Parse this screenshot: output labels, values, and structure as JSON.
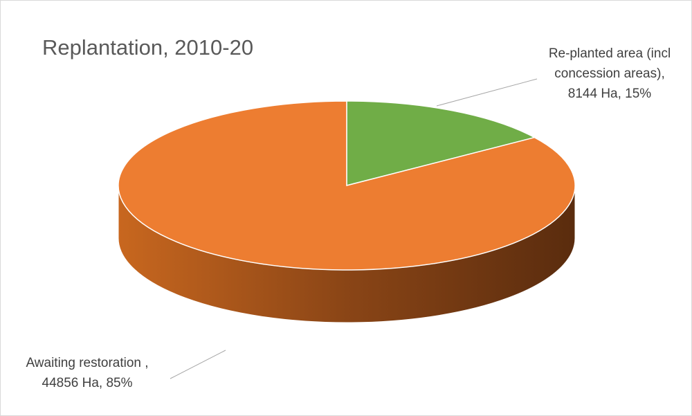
{
  "chart_data": {
    "type": "pie3d",
    "title": "Replantation, 2010-20",
    "categories": [
      "Re-planted area (incl concession areas),",
      "Awaiting restoration ,"
    ],
    "values": [
      8144,
      44856
    ],
    "value_labels": [
      "8144 Ha, 15%",
      "44856 Ha, 85%"
    ],
    "colors": [
      "#70ad47",
      "#ed7d31"
    ]
  }
}
